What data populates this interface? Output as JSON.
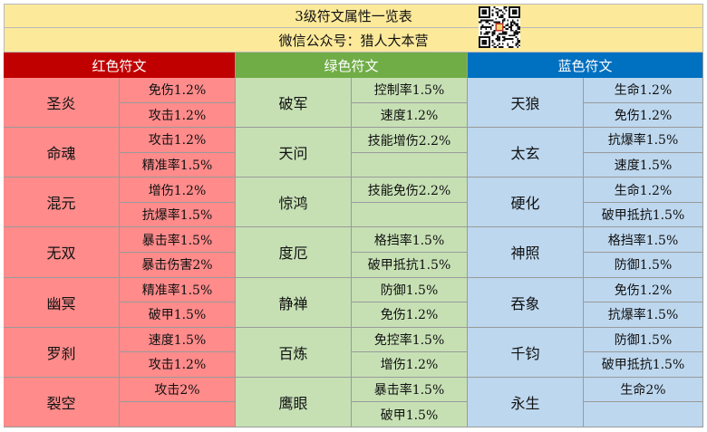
{
  "title": "3级符文属性一览表",
  "subtitle": "微信公众号：猎人大本营",
  "qr_icon": "qr-code-icon",
  "colors": {
    "red_header": "#c00000",
    "green_header": "#70ad47",
    "blue_header": "#0070c0",
    "red_cell": "#ff8b8b",
    "green_cell": "#c6e0b4",
    "blue_cell": "#bdd7ee",
    "title_bg": "#fce99a"
  },
  "groups": [
    {
      "header": "红色符文",
      "color": "red",
      "runes": [
        {
          "name": "圣炎",
          "attrs": [
            "免伤1.2%",
            "攻击1.2%"
          ]
        },
        {
          "name": "命魂",
          "attrs": [
            "攻击1.2%",
            "精准率1.5%"
          ]
        },
        {
          "name": "混元",
          "attrs": [
            "增伤1.2%",
            "抗爆率1.5%"
          ]
        },
        {
          "name": "无双",
          "attrs": [
            "暴击率1.5%",
            "暴击伤害2%"
          ]
        },
        {
          "name": "幽冥",
          "attrs": [
            "精准率1.5%",
            "破甲1.5%"
          ]
        },
        {
          "name": "罗刹",
          "attrs": [
            "速度1.5%",
            "攻击1.2%"
          ]
        },
        {
          "name": "裂空",
          "attrs": [
            "攻击2%",
            ""
          ]
        }
      ]
    },
    {
      "header": "绿色符文",
      "color": "green",
      "runes": [
        {
          "name": "破军",
          "attrs": [
            "控制率1.5%",
            "速度1.2%"
          ]
        },
        {
          "name": "天问",
          "attrs": [
            "技能增伤2.2%",
            ""
          ]
        },
        {
          "name": "惊鸿",
          "attrs": [
            "技能免伤2.2%",
            ""
          ]
        },
        {
          "name": "度厄",
          "attrs": [
            "格挡率1.5%",
            "破甲抵抗1.5%"
          ]
        },
        {
          "name": "静禅",
          "attrs": [
            "防御1.5%",
            "免伤1.2%"
          ]
        },
        {
          "name": "百炼",
          "attrs": [
            "免控率1.5%",
            "增伤1.2%"
          ]
        },
        {
          "name": "鹰眼",
          "attrs": [
            "暴击率1.5%",
            "破甲1.5%"
          ]
        }
      ]
    },
    {
      "header": "蓝色符文",
      "color": "blue",
      "runes": [
        {
          "name": "天狼",
          "attrs": [
            "生命1.2%",
            "免伤1.2%"
          ]
        },
        {
          "name": "太玄",
          "attrs": [
            "抗爆率1.5%",
            "速度1.5%"
          ]
        },
        {
          "name": "硬化",
          "attrs": [
            "生命1.2%",
            "破甲抵抗1.5%"
          ]
        },
        {
          "name": "神照",
          "attrs": [
            "格挡率1.5%",
            "防御1.5%"
          ]
        },
        {
          "name": "吞象",
          "attrs": [
            "免伤1.2%",
            "抗爆率1.5%"
          ]
        },
        {
          "name": "千钧",
          "attrs": [
            "防御1.5%",
            "破甲抵抗1.5%"
          ]
        },
        {
          "name": "永生",
          "attrs": [
            "生命2%",
            ""
          ]
        }
      ]
    }
  ]
}
